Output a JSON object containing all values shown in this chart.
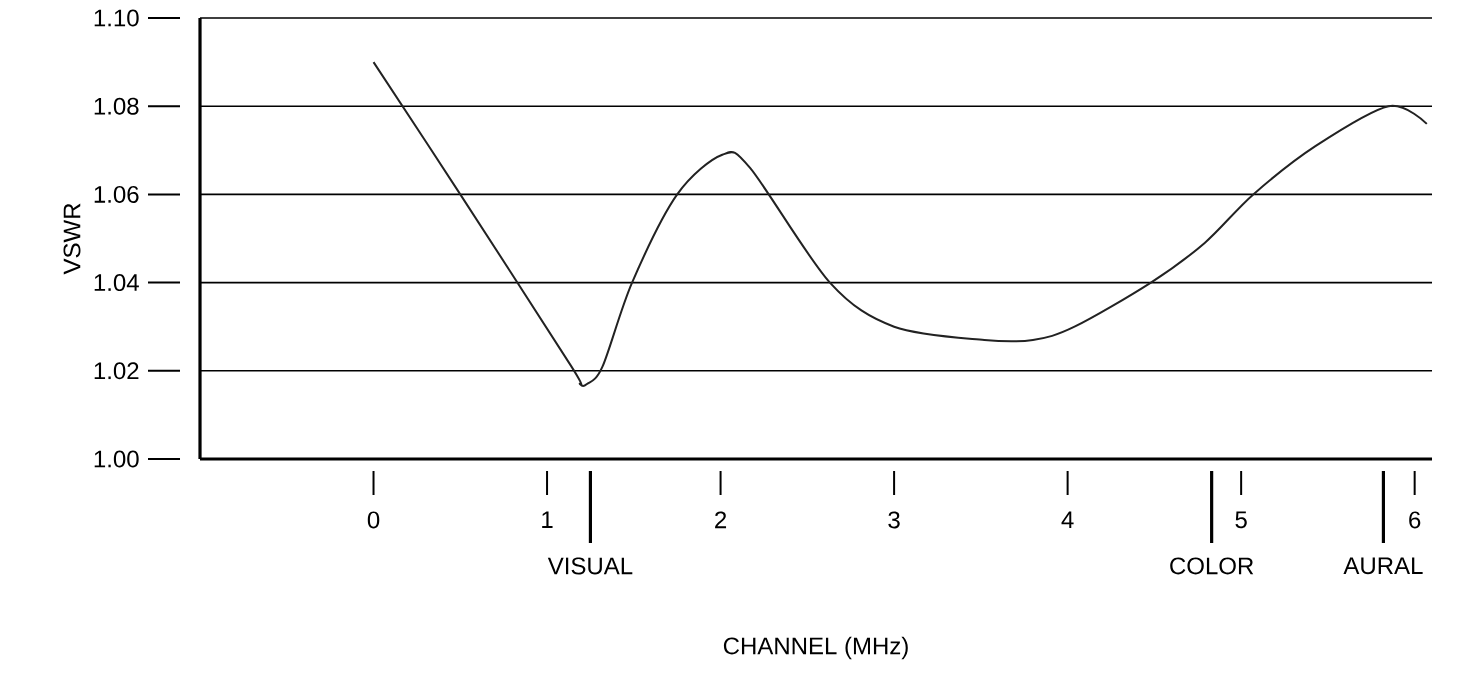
{
  "chart_data": {
    "type": "line",
    "xlabel": "CHANNEL (MHz)",
    "ylabel": "VSWR",
    "x": [
      0,
      0.5,
      1.14,
      1.19,
      1.23,
      1.32,
      1.49,
      1.75,
      2.01,
      2.17,
      2.63,
      3.0,
      3.52,
      3.8,
      4.04,
      4.48,
      4.79,
      5.07,
      5.43,
      5.85,
      6.07
    ],
    "series": [
      {
        "color": "#222222",
        "values": [
          1.09,
          1.06,
          1.021,
          1.017,
          1.017,
          1.021,
          1.04,
          1.06,
          1.069,
          1.066,
          1.04,
          1.03,
          1.027,
          1.027,
          1.03,
          1.04,
          1.049,
          1.06,
          1.071,
          1.08,
          1.076
        ]
      }
    ],
    "xlim": [
      -1,
      6.1
    ],
    "ylim": [
      1.0,
      1.1
    ],
    "xticks": [
      0,
      1,
      2,
      3,
      4,
      5,
      6
    ],
    "ref_lines": [
      {
        "axis": "x",
        "value": 1.25,
        "label": "VISUAL"
      },
      {
        "axis": "x",
        "value": 4.83,
        "label": "COLOR"
      },
      {
        "axis": "x",
        "value": 5.82,
        "label": "AURAL"
      }
    ],
    "yticks": [
      {
        "value": 1.0,
        "label": "1.00"
      },
      {
        "value": 1.02,
        "label": "1.02"
      },
      {
        "value": 1.04,
        "label": "1.04"
      },
      {
        "value": 1.06,
        "label": "1.06"
      },
      {
        "value": 1.08,
        "label": "1.08"
      },
      {
        "value": 1.1,
        "label": "1.10"
      }
    ],
    "grid": "y",
    "marker": "none",
    "line_style": "solid"
  }
}
